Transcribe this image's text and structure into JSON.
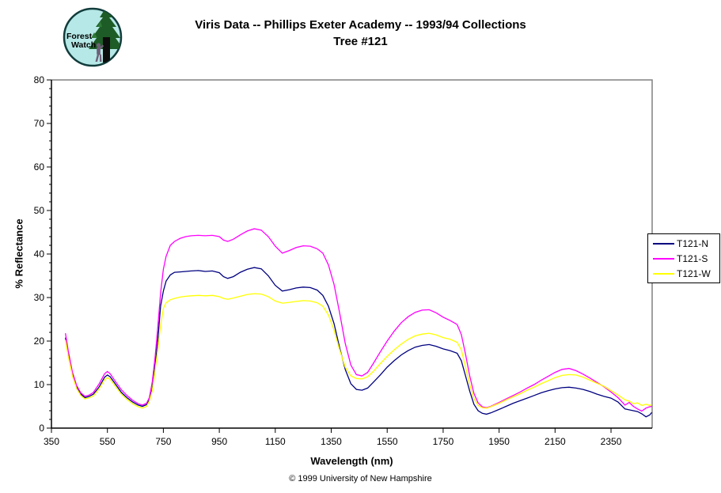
{
  "header": {
    "title_line1": "Viris Data -- Phillips Exeter Academy -- 1993/94 Collections",
    "title_line2": "Tree #121"
  },
  "logo": {
    "text_line1": "Forest",
    "text_line2": "Watch"
  },
  "footer": {
    "copyright": "© 1999 University of New Hampshire"
  },
  "chart_data": {
    "type": "line",
    "title": "Viris Data -- Phillips Exeter Academy -- 1993/94 Collections",
    "subtitle": "Tree #121",
    "xlabel": "Wavelength (nm)",
    "ylabel": "% Reflectance",
    "xlim": [
      350,
      2497
    ],
    "ylim": [
      0,
      80
    ],
    "xticks": [
      350,
      550,
      750,
      950,
      1150,
      1350,
      1550,
      1750,
      1950,
      2150,
      2350
    ],
    "yticks": [
      0,
      10,
      20,
      30,
      40,
      50,
      60,
      70,
      80
    ],
    "y_major_step": 10,
    "y_minor_step": 2,
    "grid": false,
    "legend_position": "right",
    "frame_color": "#808080",
    "axis_color": "#000000",
    "x": [
      400,
      410,
      425,
      440,
      455,
      470,
      485,
      500,
      520,
      540,
      550,
      560,
      580,
      600,
      620,
      640,
      660,
      675,
      690,
      700,
      710,
      720,
      730,
      740,
      750,
      760,
      775,
      790,
      810,
      830,
      850,
      875,
      900,
      925,
      950,
      965,
      980,
      1000,
      1025,
      1050,
      1075,
      1100,
      1125,
      1150,
      1175,
      1200,
      1225,
      1250,
      1275,
      1300,
      1320,
      1340,
      1360,
      1380,
      1400,
      1420,
      1440,
      1460,
      1480,
      1500,
      1525,
      1550,
      1575,
      1600,
      1625,
      1650,
      1675,
      1700,
      1725,
      1750,
      1775,
      1800,
      1815,
      1830,
      1845,
      1860,
      1875,
      1890,
      1905,
      1920,
      1950,
      1975,
      2000,
      2025,
      2050,
      2075,
      2100,
      2125,
      2150,
      2175,
      2200,
      2225,
      2250,
      2275,
      2300,
      2325,
      2350,
      2375,
      2400,
      2415,
      2430,
      2445,
      2460,
      2475,
      2488,
      2496
    ],
    "series": [
      {
        "name": "T121-N",
        "color": "#000080",
        "values": [
          20.8,
          17.0,
          12.3,
          9.4,
          7.8,
          7.0,
          7.3,
          7.8,
          9.4,
          11.7,
          12.2,
          11.8,
          10.0,
          8.2,
          7.0,
          6.0,
          5.3,
          5.0,
          5.4,
          6.5,
          9.0,
          14.0,
          20.0,
          28.0,
          31.5,
          33.8,
          35.2,
          35.8,
          35.9,
          36.0,
          36.1,
          36.2,
          36.0,
          36.1,
          35.7,
          34.8,
          34.4,
          34.8,
          35.8,
          36.5,
          36.9,
          36.6,
          35.0,
          32.8,
          31.5,
          31.8,
          32.2,
          32.4,
          32.3,
          31.7,
          30.5,
          28.0,
          24.0,
          18.5,
          13.5,
          10.2,
          8.9,
          8.7,
          9.2,
          10.5,
          12.2,
          14.0,
          15.5,
          16.8,
          17.8,
          18.6,
          19.0,
          19.2,
          18.8,
          18.2,
          17.8,
          17.2,
          15.5,
          12.0,
          8.5,
          5.5,
          4.0,
          3.4,
          3.2,
          3.5,
          4.3,
          5.0,
          5.7,
          6.3,
          6.9,
          7.5,
          8.1,
          8.6,
          9.0,
          9.3,
          9.4,
          9.2,
          8.9,
          8.4,
          7.8,
          7.3,
          6.9,
          6.0,
          4.4,
          4.2,
          4.0,
          3.8,
          3.3,
          2.6,
          3.0,
          3.6
        ]
      },
      {
        "name": "T121-S",
        "color": "#FF00FF",
        "values": [
          21.8,
          17.8,
          12.9,
          9.8,
          8.1,
          7.3,
          7.6,
          8.2,
          10.1,
          12.5,
          13.0,
          12.5,
          10.6,
          8.8,
          7.5,
          6.4,
          5.6,
          5.3,
          5.7,
          7.0,
          10.5,
          16.0,
          23.0,
          31.0,
          36.5,
          39.5,
          42.0,
          42.9,
          43.6,
          44.0,
          44.2,
          44.3,
          44.2,
          44.3,
          44.0,
          43.2,
          42.9,
          43.4,
          44.4,
          45.3,
          45.8,
          45.5,
          44.0,
          41.8,
          40.2,
          40.8,
          41.5,
          41.9,
          41.8,
          41.2,
          40.2,
          37.5,
          33.0,
          26.5,
          19.5,
          14.5,
          12.3,
          12.0,
          12.8,
          14.8,
          17.5,
          20.0,
          22.3,
          24.2,
          25.6,
          26.6,
          27.1,
          27.2,
          26.5,
          25.5,
          24.7,
          23.8,
          21.5,
          17.0,
          12.0,
          8.0,
          5.8,
          4.9,
          4.7,
          5.0,
          5.9,
          6.7,
          7.5,
          8.3,
          9.2,
          10.0,
          11.0,
          11.9,
          12.8,
          13.5,
          13.7,
          13.2,
          12.4,
          11.5,
          10.5,
          9.5,
          8.3,
          7.0,
          5.3,
          5.9,
          5.0,
          4.4,
          3.9,
          4.6,
          4.9,
          5.0
        ]
      },
      {
        "name": "T121-W",
        "color": "#FFFF00",
        "values": [
          20.2,
          16.5,
          12.0,
          9.1,
          7.5,
          6.7,
          7.0,
          7.4,
          9.0,
          11.1,
          11.6,
          11.2,
          9.5,
          7.8,
          6.6,
          5.6,
          4.9,
          4.6,
          5.0,
          6.2,
          8.5,
          13.0,
          18.0,
          23.5,
          27.5,
          28.8,
          29.5,
          29.8,
          30.1,
          30.3,
          30.4,
          30.5,
          30.4,
          30.5,
          30.2,
          29.8,
          29.6,
          29.9,
          30.3,
          30.7,
          30.9,
          30.8,
          30.2,
          29.2,
          28.7,
          28.9,
          29.1,
          29.3,
          29.2,
          28.8,
          28.0,
          26.0,
          22.5,
          18.0,
          14.0,
          12.0,
          11.4,
          11.3,
          11.8,
          13.0,
          14.8,
          16.5,
          18.0,
          19.3,
          20.4,
          21.2,
          21.6,
          21.8,
          21.4,
          20.8,
          20.4,
          19.7,
          18.0,
          14.0,
          10.0,
          6.8,
          5.2,
          4.7,
          4.6,
          4.9,
          5.7,
          6.5,
          7.2,
          7.9,
          8.7,
          9.4,
          10.2,
          10.9,
          11.6,
          12.1,
          12.3,
          12.2,
          11.7,
          11.0,
          10.3,
          9.6,
          8.6,
          7.6,
          6.5,
          6.2,
          5.6,
          5.8,
          5.2,
          5.5,
          5.2,
          5.4
        ]
      }
    ]
  }
}
